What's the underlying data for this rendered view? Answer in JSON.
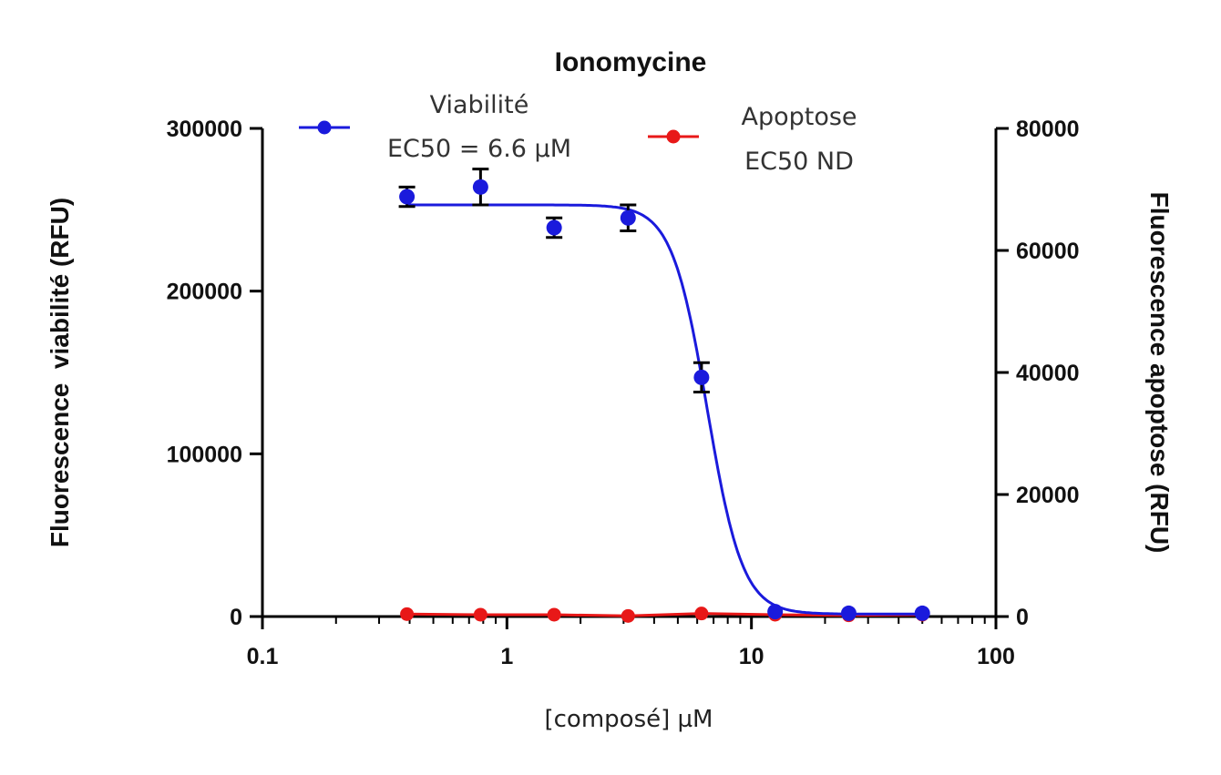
{
  "chart_data": {
    "type": "scatter",
    "title": "Ionomycine",
    "xlabel": "[composé] µM",
    "ylabel_left": "Fluorescence  viabilité (RFU)",
    "ylabel_right": "Fluorescence apoptose (RFU)",
    "xscale": "log",
    "xlim": [
      0.1,
      100
    ],
    "x_ticks": [
      0.1,
      1,
      10,
      100
    ],
    "x_tick_labels": [
      "0.1",
      "1",
      "10",
      "100"
    ],
    "ylim_left": [
      0,
      300000
    ],
    "y_left_ticks": [
      0,
      100000,
      200000,
      300000
    ],
    "y_left_tick_labels": [
      "0",
      "100000",
      "200000",
      "300000"
    ],
    "ylim_right": [
      0,
      80000
    ],
    "y_right_ticks": [
      0,
      20000,
      40000,
      60000,
      80000
    ],
    "y_right_tick_labels": [
      "0",
      "20000",
      "40000",
      "60000",
      "80000"
    ],
    "grid": false,
    "legend_position": "top",
    "series": [
      {
        "name": "Viabilité",
        "legend_label": [
          "Viabilité",
          "EC50 = 6.6 µM"
        ],
        "axis": "left",
        "color": "#1a1adc",
        "x": [
          0.39,
          0.78,
          1.56,
          3.13,
          6.25,
          12.5,
          25,
          50
        ],
        "y": [
          258000,
          264000,
          239000,
          245000,
          147000,
          3000,
          2000,
          2000
        ],
        "error": [
          6000,
          11000,
          6000,
          8000,
          9000,
          1000,
          1000,
          1000
        ],
        "fit": {
          "model": "sigmoidal",
          "top": 253000,
          "bottom": 1500,
          "ec50": 6.6,
          "hill": 6
        }
      },
      {
        "name": "Apoptose",
        "legend_label": [
          "Apoptose",
          "EC50 ND"
        ],
        "axis": "right",
        "color": "#e81818",
        "x": [
          0.39,
          0.78,
          1.56,
          3.13,
          6.25,
          12.5,
          25,
          50
        ],
        "y": [
          400,
          300,
          300,
          100,
          500,
          300,
          200,
          300
        ]
      }
    ]
  }
}
